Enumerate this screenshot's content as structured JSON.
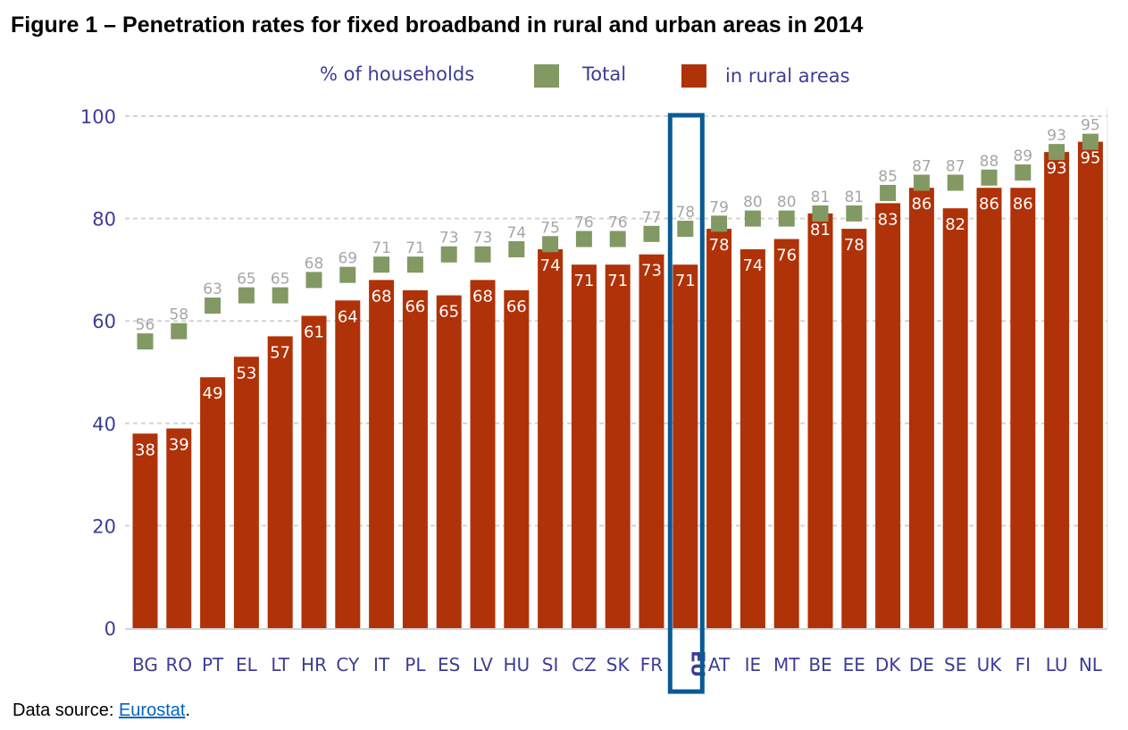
{
  "chart_data": {
    "type": "bar",
    "title": "Figure 1 – Penetration rates for fixed broadband in rural and urban areas in 2014",
    "ylabel": "% of households",
    "ylim": [
      0,
      100
    ],
    "yticks": [
      0,
      20,
      40,
      60,
      80,
      100
    ],
    "grid": true,
    "legend_position": "top",
    "highlight": "EU",
    "categories": [
      "BG",
      "RO",
      "PT",
      "EL",
      "LT",
      "HR",
      "CY",
      "IT",
      "PL",
      "ES",
      "LV",
      "HU",
      "SI",
      "CZ",
      "SK",
      "FR",
      "EU",
      "AT",
      "IE",
      "MT",
      "BE",
      "EE",
      "DK",
      "DE",
      "SE",
      "UK",
      "FI",
      "LU",
      "NL"
    ],
    "series": [
      {
        "name": "Total",
        "marker": "square",
        "color": "#829963",
        "values": [
          56,
          58,
          63,
          65,
          65,
          68,
          69,
          71,
          71,
          73,
          73,
          74,
          75,
          76,
          76,
          77,
          78,
          79,
          80,
          80,
          81,
          81,
          85,
          87,
          87,
          88,
          89,
          93,
          95
        ]
      },
      {
        "name": "in rural areas",
        "marker": "bar",
        "color": "#b03208",
        "values": [
          38,
          39,
          49,
          53,
          57,
          61,
          64,
          68,
          66,
          65,
          68,
          66,
          74,
          71,
          71,
          73,
          71,
          78,
          74,
          76,
          81,
          78,
          83,
          86,
          82,
          86,
          86,
          93,
          95
        ]
      }
    ]
  },
  "footer": {
    "prefix": "Data source: ",
    "link": "Eurostat",
    "suffix": "."
  },
  "colors": {
    "axis_text": "#3d3d96",
    "highlight": "#0a5a94",
    "total_label": "#a6a6a6"
  }
}
